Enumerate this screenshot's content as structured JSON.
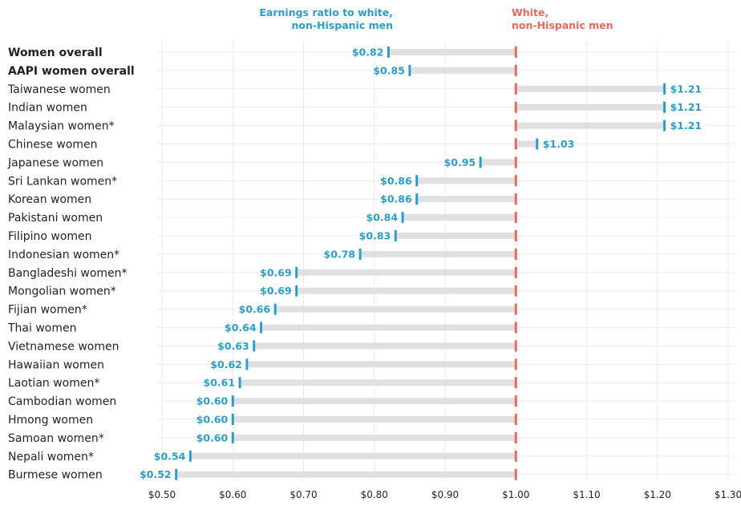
{
  "chart_data": {
    "type": "bar",
    "legend": {
      "ratio_line1": "Earnings ratio to white,",
      "ratio_line2": "non-Hispanic men",
      "ref_line1": "White,",
      "ref_line2": "non-Hispanic men"
    },
    "categories": [
      "Women overall",
      "AAPI women overall",
      "Taiwanese women",
      "Indian women",
      "Malaysian women*",
      "Chinese women",
      "Japanese women",
      "Sri Lankan women*",
      "Korean women",
      "Pakistani women",
      "Filipino women",
      "Indonesian women*",
      "Bangladeshi women*",
      "Mongolian women*",
      "Fijian women*",
      "Thai women",
      "Vietnamese women",
      "Hawaiian women",
      "Laotian women*",
      "Cambodian women",
      "Hmong women",
      "Samoan women*",
      "Nepali women*",
      "Burmese women"
    ],
    "bold_categories": [
      "Women overall",
      "AAPI women overall"
    ],
    "values": [
      0.82,
      0.85,
      1.21,
      1.21,
      1.21,
      1.03,
      0.95,
      0.86,
      0.86,
      0.84,
      0.83,
      0.78,
      0.69,
      0.69,
      0.66,
      0.64,
      0.63,
      0.62,
      0.61,
      0.6,
      0.6,
      0.6,
      0.54,
      0.52
    ],
    "value_labels": [
      "$0.82",
      "$0.85",
      "$1.21",
      "$1.21",
      "$1.21",
      "$1.03",
      "$0.95",
      "$0.86",
      "$0.86",
      "$0.84",
      "$0.83",
      "$0.78",
      "$0.69",
      "$0.69",
      "$0.66",
      "$0.64",
      "$0.63",
      "$0.62",
      "$0.61",
      "$0.60",
      "$0.60",
      "$0.60",
      "$0.54",
      "$0.52"
    ],
    "reference_value": 1.0,
    "xlim": [
      0.5,
      1.3
    ],
    "xticks": [
      0.5,
      0.6,
      0.7,
      0.8,
      0.9,
      1.0,
      1.1,
      1.2,
      1.3
    ],
    "xtick_labels": [
      "$0.50",
      "$0.60",
      "$0.70",
      "$0.80",
      "$0.90",
      "$1.00",
      "$1.10",
      "$1.20",
      "$1.30"
    ],
    "grid": true,
    "colors": {
      "value": "#2a9ec9",
      "reference": "#e8685f",
      "bar": "#e0e0e0",
      "grid": "#ebebeb",
      "text": "#222222"
    }
  }
}
